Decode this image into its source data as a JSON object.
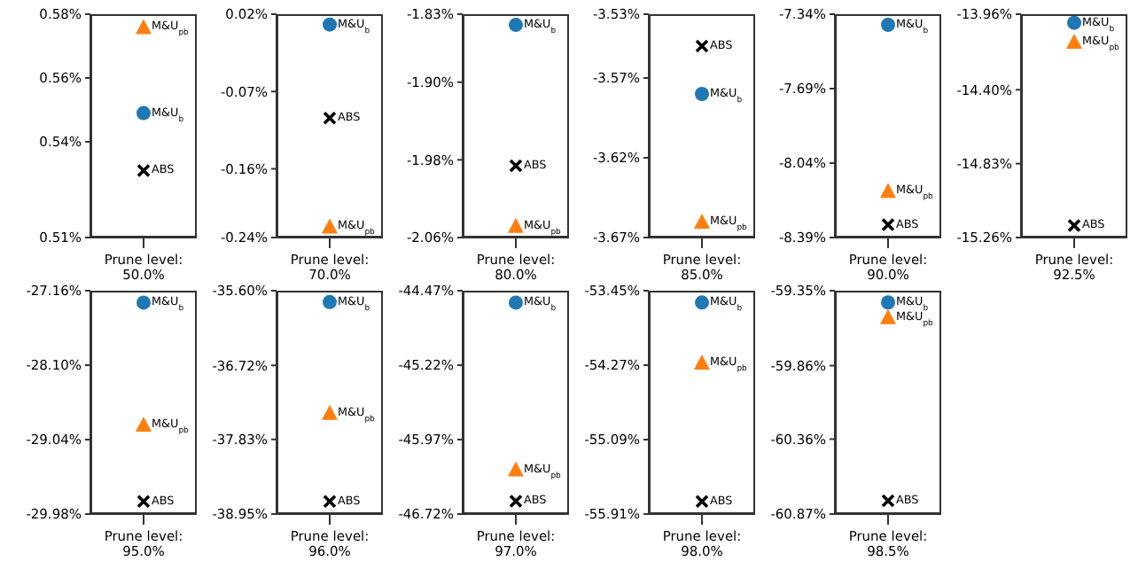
{
  "chart_data": [
    {
      "type": "scatter",
      "categories": [
        "Prune level:\n50.0%"
      ],
      "ylim": [
        0.51,
        0.58
      ],
      "yticks": [
        {
          "value": 0.51,
          "label": "0.51%"
        },
        {
          "value": 0.54,
          "label": "0.54%"
        },
        {
          "value": 0.56,
          "label": "0.56%"
        },
        {
          "value": 0.58,
          "label": "0.58%"
        }
      ],
      "legend": false,
      "grid": false,
      "series": [
        {
          "name": "ABS",
          "color": "#000000",
          "marker": "cross",
          "values": [
            0.531
          ]
        },
        {
          "name": "M&U$_{b}$",
          "color": "#1f77b4",
          "marker": "circle",
          "values": [
            0.549
          ]
        },
        {
          "name": "M&U$_{pb}$",
          "color": "#ff7f0e",
          "marker": "triangle",
          "values": [
            0.576
          ]
        }
      ]
    },
    {
      "type": "scatter",
      "categories": [
        "Prune level:\n70.0%"
      ],
      "ylim": [
        -0.24,
        0.02
      ],
      "yticks": [
        {
          "value": -0.24,
          "label": "-0.24%"
        },
        {
          "value": -0.16,
          "label": "-0.16%"
        },
        {
          "value": -0.07,
          "label": "-0.07%"
        },
        {
          "value": 0.02,
          "label": "0.02%"
        }
      ],
      "legend": false,
      "grid": false,
      "series": [
        {
          "name": "ABS",
          "color": "#000000",
          "marker": "cross",
          "values": [
            -0.101
          ]
        },
        {
          "name": "M&U$_{b}$",
          "color": "#1f77b4",
          "marker": "circle",
          "values": [
            0.008
          ]
        },
        {
          "name": "M&U$_{pb}$",
          "color": "#ff7f0e",
          "marker": "triangle",
          "values": [
            -0.227
          ]
        }
      ]
    },
    {
      "type": "scatter",
      "categories": [
        "Prune level:\n80.0%"
      ],
      "ylim": [
        -2.06,
        -1.83
      ],
      "yticks": [
        {
          "value": -2.06,
          "label": "-2.06%"
        },
        {
          "value": -1.98,
          "label": "-1.98%"
        },
        {
          "value": -1.9,
          "label": "-1.90%"
        },
        {
          "value": -1.83,
          "label": "-1.83%"
        }
      ],
      "legend": false,
      "grid": false,
      "series": [
        {
          "name": "ABS",
          "color": "#000000",
          "marker": "cross",
          "values": [
            -1.986
          ]
        },
        {
          "name": "M&U$_{b}$",
          "color": "#1f77b4",
          "marker": "circle",
          "values": [
            -1.841
          ]
        },
        {
          "name": "M&U$_{pb}$",
          "color": "#ff7f0e",
          "marker": "triangle",
          "values": [
            -2.048
          ]
        }
      ]
    },
    {
      "type": "scatter",
      "categories": [
        "Prune level:\n85.0%"
      ],
      "ylim": [
        -3.67,
        -3.53
      ],
      "yticks": [
        {
          "value": -3.67,
          "label": "-3.67%"
        },
        {
          "value": -3.62,
          "label": "-3.62%"
        },
        {
          "value": -3.57,
          "label": "-3.57%"
        },
        {
          "value": -3.53,
          "label": "-3.53%"
        }
      ],
      "legend": false,
      "grid": false,
      "series": [
        {
          "name": "ABS",
          "color": "#000000",
          "marker": "cross",
          "values": [
            -3.55
          ]
        },
        {
          "name": "M&U$_{b}$",
          "color": "#1f77b4",
          "marker": "circle",
          "values": [
            -3.58
          ]
        },
        {
          "name": "M&U$_{pb}$",
          "color": "#ff7f0e",
          "marker": "triangle",
          "values": [
            -3.66
          ]
        }
      ]
    },
    {
      "type": "scatter",
      "categories": [
        "Prune level:\n90.0%"
      ],
      "ylim": [
        -8.39,
        -7.34
      ],
      "yticks": [
        {
          "value": -8.39,
          "label": "-8.39%"
        },
        {
          "value": -8.04,
          "label": "-8.04%"
        },
        {
          "value": -7.69,
          "label": "-7.69%"
        },
        {
          "value": -7.34,
          "label": "-7.34%"
        }
      ],
      "legend": false,
      "grid": false,
      "series": [
        {
          "name": "ABS",
          "color": "#000000",
          "marker": "cross",
          "values": [
            -8.33
          ]
        },
        {
          "name": "M&U$_{b}$",
          "color": "#1f77b4",
          "marker": "circle",
          "values": [
            -7.39
          ]
        },
        {
          "name": "M&U$_{pb}$",
          "color": "#ff7f0e",
          "marker": "triangle",
          "values": [
            -8.17
          ]
        }
      ]
    },
    {
      "type": "scatter",
      "categories": [
        "Prune level:\n92.5%"
      ],
      "ylim": [
        -15.26,
        -13.96
      ],
      "yticks": [
        {
          "value": -15.26,
          "label": "-15.26%"
        },
        {
          "value": -14.83,
          "label": "-14.83%"
        },
        {
          "value": -14.4,
          "label": "-14.40%"
        },
        {
          "value": -13.96,
          "label": "-13.96%"
        }
      ],
      "legend": false,
      "grid": false,
      "series": [
        {
          "name": "ABS",
          "color": "#000000",
          "marker": "cross",
          "values": [
            -15.19
          ]
        },
        {
          "name": "M&U$_{b}$",
          "color": "#1f77b4",
          "marker": "circle",
          "values": [
            -14.01
          ]
        },
        {
          "name": "M&U$_{pb}$",
          "color": "#ff7f0e",
          "marker": "triangle",
          "values": [
            -14.12
          ]
        }
      ]
    },
    {
      "type": "scatter",
      "categories": [
        "Prune level:\n95.0%"
      ],
      "ylim": [
        -29.98,
        -27.16
      ],
      "yticks": [
        {
          "value": -29.98,
          "label": "-29.98%"
        },
        {
          "value": -29.04,
          "label": "-29.04%"
        },
        {
          "value": -28.1,
          "label": "-28.10%"
        },
        {
          "value": -27.16,
          "label": "-27.16%"
        }
      ],
      "legend": false,
      "grid": false,
      "series": [
        {
          "name": "ABS",
          "color": "#000000",
          "marker": "cross",
          "values": [
            -29.82
          ]
        },
        {
          "name": "M&U$_{b}$",
          "color": "#1f77b4",
          "marker": "circle",
          "values": [
            -27.31
          ]
        },
        {
          "name": "M&U$_{pb}$",
          "color": "#ff7f0e",
          "marker": "triangle",
          "values": [
            -28.85
          ]
        }
      ]
    },
    {
      "type": "scatter",
      "categories": [
        "Prune level:\n96.0%"
      ],
      "ylim": [
        -38.95,
        -35.6
      ],
      "yticks": [
        {
          "value": -38.95,
          "label": "-38.95%"
        },
        {
          "value": -37.83,
          "label": "-37.83%"
        },
        {
          "value": -36.72,
          "label": "-36.72%"
        },
        {
          "value": -35.6,
          "label": "-35.60%"
        }
      ],
      "legend": false,
      "grid": false,
      "series": [
        {
          "name": "ABS",
          "color": "#000000",
          "marker": "cross",
          "values": [
            -38.76
          ]
        },
        {
          "name": "M&U$_{b}$",
          "color": "#1f77b4",
          "marker": "circle",
          "values": [
            -35.77
          ]
        },
        {
          "name": "M&U$_{pb}$",
          "color": "#ff7f0e",
          "marker": "triangle",
          "values": [
            -37.43
          ]
        }
      ]
    },
    {
      "type": "scatter",
      "categories": [
        "Prune level:\n97.0%"
      ],
      "ylim": [
        -46.72,
        -44.47
      ],
      "yticks": [
        {
          "value": -46.72,
          "label": "-46.72%"
        },
        {
          "value": -45.97,
          "label": "-45.97%"
        },
        {
          "value": -45.22,
          "label": "-45.22%"
        },
        {
          "value": -44.47,
          "label": "-44.47%"
        }
      ],
      "legend": false,
      "grid": false,
      "series": [
        {
          "name": "ABS",
          "color": "#000000",
          "marker": "cross",
          "values": [
            -46.59
          ]
        },
        {
          "name": "M&U$_{b}$",
          "color": "#1f77b4",
          "marker": "circle",
          "values": [
            -44.59
          ]
        },
        {
          "name": "M&U$_{pb}$",
          "color": "#ff7f0e",
          "marker": "triangle",
          "values": [
            -46.27
          ]
        }
      ]
    },
    {
      "type": "scatter",
      "categories": [
        "Prune level:\n98.0%"
      ],
      "ylim": [
        -55.91,
        -53.45
      ],
      "yticks": [
        {
          "value": -55.91,
          "label": "-55.91%"
        },
        {
          "value": -55.09,
          "label": "-55.09%"
        },
        {
          "value": -54.27,
          "label": "-54.27%"
        },
        {
          "value": -53.45,
          "label": "-53.45%"
        }
      ],
      "legend": false,
      "grid": false,
      "series": [
        {
          "name": "ABS",
          "color": "#000000",
          "marker": "cross",
          "values": [
            -55.77
          ]
        },
        {
          "name": "M&U$_{b}$",
          "color": "#1f77b4",
          "marker": "circle",
          "values": [
            -53.58
          ]
        },
        {
          "name": "M&U$_{pb}$",
          "color": "#ff7f0e",
          "marker": "triangle",
          "values": [
            -54.24
          ]
        }
      ]
    },
    {
      "type": "scatter",
      "categories": [
        "Prune level:\n98.5%"
      ],
      "ylim": [
        -60.87,
        -59.35
      ],
      "yticks": [
        {
          "value": -60.87,
          "label": "-60.87%"
        },
        {
          "value": -60.36,
          "label": "-60.36%"
        },
        {
          "value": -59.86,
          "label": "-59.86%"
        },
        {
          "value": -59.35,
          "label": "-59.35%"
        }
      ],
      "legend": false,
      "grid": false,
      "series": [
        {
          "name": "ABS",
          "color": "#000000",
          "marker": "cross",
          "values": [
            -60.78
          ]
        },
        {
          "name": "M&U$_{b}$",
          "color": "#1f77b4",
          "marker": "circle",
          "values": [
            -59.43
          ]
        },
        {
          "name": "M&U$_{pb}$",
          "color": "#ff7f0e",
          "marker": "triangle",
          "values": [
            -59.53
          ]
        }
      ]
    }
  ]
}
